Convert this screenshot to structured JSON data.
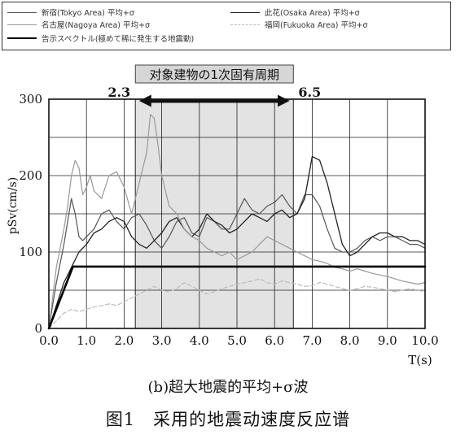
{
  "legend": {
    "items": [
      {
        "key": "tokyo",
        "label": "新宿(Tokyo Area) 平均+σ",
        "color": "#555555",
        "width": 1.2,
        "dash": ""
      },
      {
        "key": "osaka",
        "label": "此花(Osaka Area) 平均+σ",
        "color": "#222222",
        "width": 1.3,
        "dash": ""
      },
      {
        "key": "nagoya",
        "label": "名古屋(Nagoya Area) 平均+σ",
        "color": "#999999",
        "width": 1.2,
        "dash": ""
      },
      {
        "key": "fukuoka",
        "label": "福岡(Fukuoka Area) 平均+σ",
        "color": "#bbbbbb",
        "width": 1.2,
        "dash": "5,3"
      },
      {
        "key": "notice",
        "label": "告示スペクトル(極めて稀に発生する地震動)",
        "color": "#000000",
        "width": 2.6,
        "dash": ""
      }
    ]
  },
  "period_annotation": {
    "label": "对象建物の1次固有周期",
    "start_label": "2.3",
    "end_label": "6.5"
  },
  "captions": {
    "sub": "(b)超大地震的平均+σ波",
    "figure": "图1　采用的地震动速度反应谱"
  },
  "chart_data": {
    "type": "line",
    "xlabel": "T(s)",
    "ylabel": "pSv(cm/s)",
    "xlim": [
      0,
      10
    ],
    "ylim": [
      0,
      300
    ],
    "xticks": [
      0.0,
      1.0,
      2.0,
      3.0,
      4.0,
      5.0,
      6.0,
      7.0,
      8.0,
      9.0,
      10.0
    ],
    "xtick_labels": [
      "0.0",
      "1.0",
      "2.0",
      "3.0",
      "4.0",
      "5.0",
      "6.0",
      "7.0",
      "8.0",
      "9.0",
      "10.0"
    ],
    "yticks": [
      0,
      100,
      200,
      300
    ],
    "ytick_labels": [
      "0",
      "100",
      "200",
      "300"
    ],
    "grid": true,
    "shaded_region": [
      2.3,
      6.5
    ],
    "series": [
      {
        "name": "新宿(Tokyo Area) 平均+σ",
        "color": "#555555",
        "width": 1.2,
        "dash": "",
        "x": [
          0.0,
          0.2,
          0.4,
          0.5,
          0.6,
          0.7,
          0.8,
          0.9,
          1.0,
          1.2,
          1.4,
          1.6,
          1.8,
          2.0,
          2.2,
          2.4,
          2.6,
          2.8,
          3.0,
          3.2,
          3.4,
          3.6,
          3.8,
          4.0,
          4.2,
          4.4,
          4.6,
          4.8,
          5.0,
          5.2,
          5.4,
          5.6,
          5.8,
          6.0,
          6.2,
          6.4,
          6.6,
          6.8,
          7.0,
          7.2,
          7.4,
          7.6,
          7.8,
          8.0,
          8.2,
          8.4,
          8.6,
          8.8,
          9.0,
          9.2,
          9.4,
          9.6,
          9.8,
          10.0
        ],
        "y": [
          0,
          60,
          110,
          140,
          170,
          150,
          120,
          115,
          120,
          130,
          150,
          155,
          140,
          130,
          145,
          150,
          135,
          115,
          105,
          120,
          140,
          145,
          125,
          120,
          145,
          140,
          130,
          130,
          150,
          170,
          155,
          150,
          160,
          165,
          175,
          160,
          150,
          175,
          175,
          160,
          130,
          105,
          100,
          100,
          105,
          115,
          120,
          115,
          120,
          120,
          115,
          110,
          110,
          105
        ]
      },
      {
        "name": "此花(Osaka Area) 平均+σ",
        "color": "#222222",
        "width": 1.3,
        "dash": "",
        "x": [
          0.0,
          0.2,
          0.4,
          0.6,
          0.8,
          1.0,
          1.2,
          1.4,
          1.6,
          1.8,
          2.0,
          2.2,
          2.4,
          2.6,
          2.8,
          3.0,
          3.2,
          3.4,
          3.6,
          3.8,
          4.0,
          4.2,
          4.4,
          4.6,
          4.8,
          5.0,
          5.2,
          5.4,
          5.6,
          5.8,
          6.0,
          6.2,
          6.4,
          6.6,
          6.8,
          7.0,
          7.2,
          7.4,
          7.6,
          7.8,
          8.0,
          8.2,
          8.4,
          8.6,
          8.8,
          9.0,
          9.2,
          9.4,
          9.6,
          9.8,
          10.0
        ],
        "y": [
          0,
          30,
          60,
          80,
          100,
          110,
          125,
          130,
          140,
          145,
          140,
          120,
          110,
          105,
          115,
          125,
          140,
          145,
          130,
          120,
          130,
          150,
          140,
          135,
          125,
          130,
          140,
          150,
          145,
          140,
          150,
          155,
          145,
          150,
          170,
          225,
          220,
          190,
          150,
          110,
          95,
          100,
          110,
          120,
          125,
          125,
          120,
          120,
          115,
          115,
          110
        ]
      },
      {
        "name": "名古屋(Nagoya Area) 平均+σ",
        "color": "#999999",
        "width": 1.2,
        "dash": "",
        "x": [
          0.0,
          0.2,
          0.4,
          0.5,
          0.6,
          0.7,
          0.8,
          0.9,
          1.0,
          1.1,
          1.2,
          1.4,
          1.6,
          1.8,
          2.0,
          2.2,
          2.4,
          2.6,
          2.7,
          2.8,
          2.9,
          3.0,
          3.2,
          3.4,
          3.6,
          3.8,
          4.0,
          4.2,
          4.4,
          4.6,
          4.8,
          5.0,
          5.2,
          5.4,
          5.6,
          5.8,
          6.0,
          6.2,
          6.4,
          6.6,
          6.8,
          7.0,
          7.2,
          7.4,
          7.6,
          7.8,
          8.0,
          8.2,
          8.4,
          8.6,
          8.8,
          9.0,
          9.2,
          9.4,
          9.6,
          9.8,
          10.0
        ],
        "y": [
          0,
          80,
          130,
          160,
          200,
          220,
          210,
          175,
          185,
          200,
          180,
          170,
          200,
          205,
          185,
          150,
          190,
          230,
          280,
          275,
          240,
          200,
          160,
          150,
          130,
          120,
          115,
          105,
          100,
          95,
          100,
          90,
          95,
          100,
          110,
          120,
          115,
          110,
          105,
          100,
          95,
          90,
          88,
          85,
          80,
          78,
          75,
          78,
          75,
          72,
          70,
          68,
          65,
          62,
          60,
          58,
          60
        ]
      },
      {
        "name": "福岡(Fukuoka Area) 平均+σ",
        "color": "#bbbbbb",
        "width": 1.2,
        "dash": "5,3",
        "x": [
          0.0,
          0.2,
          0.4,
          0.6,
          0.8,
          1.0,
          1.2,
          1.4,
          1.6,
          1.8,
          2.0,
          2.2,
          2.4,
          2.6,
          2.8,
          3.0,
          3.2,
          3.4,
          3.6,
          3.8,
          4.0,
          4.2,
          4.4,
          4.6,
          4.8,
          5.0,
          5.2,
          5.4,
          5.6,
          5.8,
          6.0,
          6.2,
          6.4,
          6.6,
          6.8,
          7.0,
          7.2,
          7.4,
          7.6,
          7.8,
          8.0,
          8.2,
          8.4,
          8.6,
          8.8,
          9.0,
          9.2,
          9.4,
          9.6,
          9.8,
          10.0
        ],
        "y": [
          0,
          10,
          20,
          25,
          22,
          25,
          28,
          30,
          32,
          30,
          35,
          40,
          45,
          50,
          55,
          50,
          48,
          52,
          60,
          55,
          50,
          45,
          48,
          52,
          55,
          58,
          60,
          62,
          65,
          60,
          58,
          62,
          60,
          58,
          55,
          56,
          60,
          58,
          55,
          52,
          50,
          52,
          55,
          54,
          52,
          50,
          48,
          50,
          52,
          50,
          48
        ]
      },
      {
        "name": "告示スペクトル(極めて稀に発生する地震動)",
        "color": "#000000",
        "width": 2.6,
        "dash": "",
        "x": [
          0.0,
          0.64,
          10.0
        ],
        "y": [
          0,
          81,
          81
        ]
      }
    ]
  }
}
